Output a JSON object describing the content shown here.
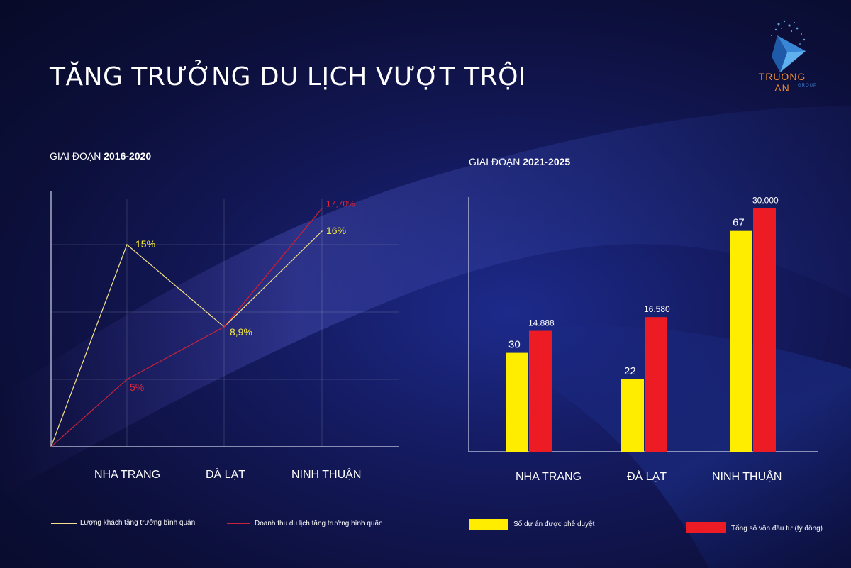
{
  "page": {
    "title": "TĂNG TRƯỞNG DU LỊCH VƯỢT TRỘI",
    "brand": {
      "name": "TRUONG AN",
      "sub": "GROUP",
      "logo_icon": "chevron-logo-icon"
    }
  },
  "chart_data": [
    {
      "type": "line",
      "title_prefix": "GIAI ĐOẠN ",
      "title_bold": "2016-2020",
      "categories": [
        "NHA TRANG",
        "ĐÀ LẠT",
        "NINH THUẬN"
      ],
      "series": [
        {
          "name": "Lượng khách tăng trưởng bình quân",
          "color": "#f3e08c",
          "label_color": "#f7ea3a",
          "values": [
            15,
            8.9,
            16
          ],
          "labels": [
            "15%",
            "8,9%",
            "16%"
          ]
        },
        {
          "name": "Doanh thu du lịch tăng trưởng bình quân",
          "color": "#c8233a",
          "label_color": "#e0243a",
          "values": [
            5,
            8.9,
            17.7
          ],
          "labels": [
            "5%",
            "",
            "17,70%"
          ]
        }
      ],
      "ylim": [
        0,
        20
      ],
      "grid": true
    },
    {
      "type": "bar",
      "title_prefix": "GIAI ĐOẠN ",
      "title_bold": "2021-2025",
      "categories": [
        "NHA TRANG",
        "ĐÀ LẠT",
        "NINH THUẬN"
      ],
      "series": [
        {
          "name": "Số dự án được phê duyệt",
          "color": "#ffed00",
          "values": [
            30,
            22,
            67
          ],
          "labels": [
            "30",
            "22",
            "67"
          ],
          "ylim": [
            0,
            85
          ]
        },
        {
          "name": "Tổng số vốn đầu tư (tỷ đồng)",
          "color": "#ed1c24",
          "values": [
            14888,
            16580,
            30000
          ],
          "labels": [
            "14.888",
            "16.580",
            "30.000"
          ],
          "ylim": [
            0,
            34500
          ]
        }
      ]
    }
  ]
}
